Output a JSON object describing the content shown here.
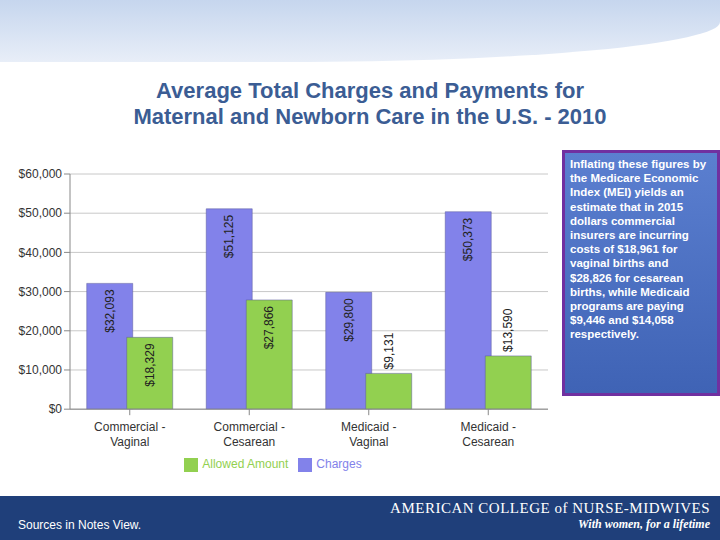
{
  "chart_data": {
    "type": "bar",
    "title": "Average Total Charges and Payments for Maternal and Newborn Care in the U.S. - 2010",
    "categories": [
      "Commercial - Vaginal",
      "Commercial - Cesarean",
      "Medicaid - Vaginal",
      "Medicaid - Cesarean"
    ],
    "series": [
      {
        "name": "Charges",
        "color": "#8282ea",
        "values": [
          32093,
          51125,
          29800,
          50373
        ],
        "value_labels": [
          "$32,093",
          "$51,125",
          "$29,800",
          "$50,373"
        ]
      },
      {
        "name": "Allowed Amount",
        "color": "#92d050",
        "values": [
          18329,
          27866,
          9131,
          13590
        ],
        "value_labels": [
          "$18,329",
          "$27,866",
          "$9,131",
          "$13,590"
        ]
      }
    ],
    "ylim": [
      0,
      60000
    ],
    "yticks": [
      {
        "value": 0,
        "label": "$0"
      },
      {
        "value": 10000,
        "label": "$10,000"
      },
      {
        "value": 20000,
        "label": "$20,000"
      },
      {
        "value": 30000,
        "label": "$30,000"
      },
      {
        "value": 40000,
        "label": "$40,000"
      },
      {
        "value": 50000,
        "label": "$50,000"
      },
      {
        "value": 60000,
        "label": "$60,000"
      }
    ],
    "grid": true,
    "legend": "bottom",
    "data_labels": true
  },
  "annotation": "Inflating these figures by the Medicare Economic Index (MEI) yields an estimate that in 2015 dollars commercial insurers are incurring costs of $18,961 for vaginal births and $28,826 for cesarean births, while Medicaid programs are paying $9,446 and $14,058 respectively.",
  "footer": {
    "source_note": "Sources in Notes View.",
    "organization": "AMERICAN COLLEGE of NURSE-MIDWIVES",
    "tagline": "With women, for a lifetime"
  }
}
